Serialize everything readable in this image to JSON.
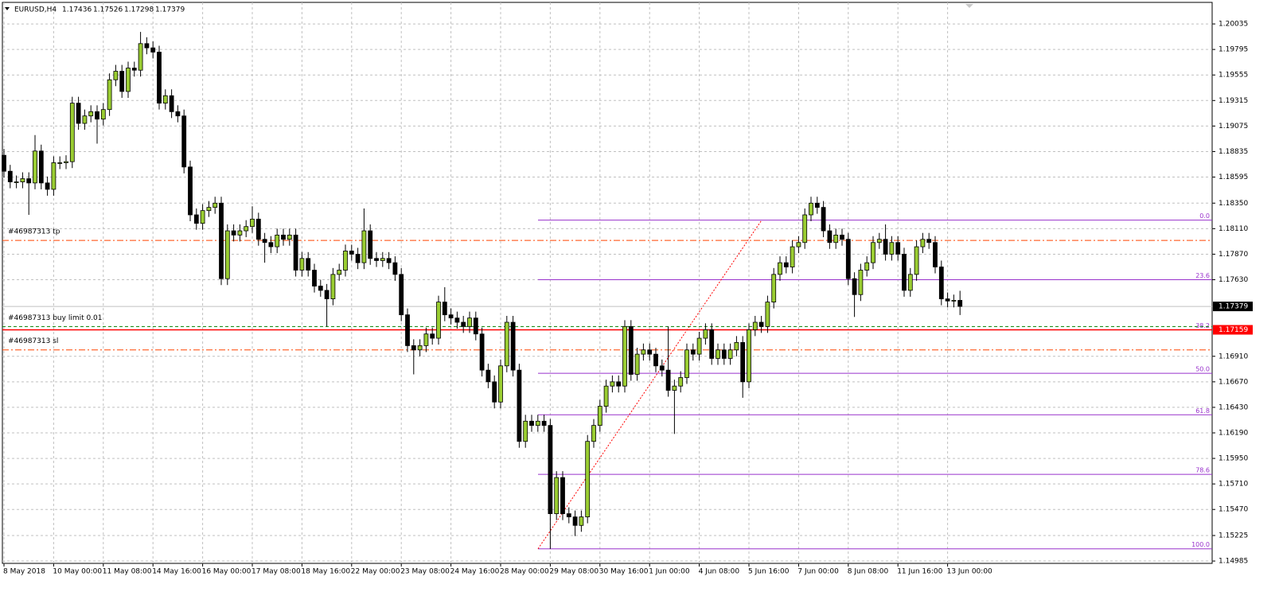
{
  "chart_data": {
    "type": "candlestick",
    "title": "EURUSD,H4",
    "categories": [
      "8 May 2018",
      null,
      null,
      null,
      null,
      null,
      null,
      null,
      "10 May 00:00",
      null,
      null,
      null,
      null,
      null,
      null,
      null,
      "11 May 08:00",
      null,
      null,
      null,
      null,
      null,
      null,
      null,
      "14 May 16:00",
      null,
      null,
      null,
      null,
      null,
      null,
      null,
      "16 May 00:00",
      null,
      null,
      null,
      null,
      null,
      null,
      null,
      "17 May 08:00",
      null,
      null,
      null,
      null,
      null,
      null,
      null,
      "18 May 16:00",
      null,
      null,
      null,
      null,
      null,
      null,
      null,
      "22 May 00:00",
      null,
      null,
      null,
      null,
      null,
      null,
      null,
      "23 May 08:00",
      null,
      null,
      null,
      null,
      null,
      null,
      null,
      "24 May 16:00",
      null,
      null,
      null,
      null,
      null,
      null,
      null,
      "28 May 00:00",
      null,
      null,
      null,
      null,
      null,
      null,
      null,
      "29 May 08:00",
      null,
      null,
      null,
      null,
      null,
      null,
      null,
      "30 May 16:00",
      null,
      null,
      null,
      null,
      null,
      null,
      null,
      "1 Jun 00:00",
      null,
      null,
      null,
      null,
      null,
      null,
      null,
      "4 Jun 08:00",
      null,
      null,
      null,
      null,
      null,
      null,
      null,
      "5 Jun 16:00",
      null,
      null,
      null,
      null,
      null,
      null,
      null,
      "7 Jun 00:00",
      null,
      null,
      null,
      null,
      null,
      null,
      null,
      "8 Jun 08:00",
      null,
      null,
      null,
      null,
      null,
      null,
      null,
      "11 Jun 16:00",
      null,
      null,
      null,
      null,
      null,
      null,
      null,
      "13 Jun 00:00",
      null,
      null
    ],
    "open": [
      1.188,
      1.1865,
      1.1855,
      1.1855,
      1.1858,
      1.1854,
      1.1884,
      1.1854,
      1.1848,
      1.1873,
      1.1873,
      1.1874,
      1.1929,
      1.191,
      1.1917,
      1.1921,
      1.1914,
      1.1923,
      1.1951,
      1.1959,
      1.194,
      1.1962,
      1.196,
      1.1985,
      1.1981,
      1.1977,
      1.1929,
      1.1936,
      1.1921,
      1.1917,
      1.1869,
      1.1824,
      1.1816,
      1.1828,
      1.1831,
      1.1835,
      1.1764,
      1.1809,
      1.1805,
      1.1809,
      1.1813,
      1.182,
      1.1801,
      1.1798,
      1.1794,
      1.1805,
      1.1801,
      1.1805,
      1.1772,
      1.1783,
      1.1772,
      1.1757,
      1.1753,
      1.1745,
      1.1768,
      1.1772,
      1.179,
      1.1787,
      1.1779,
      1.1809,
      1.1783,
      1.1781,
      1.1783,
      1.1779,
      1.1768,
      1.173,
      1.1701,
      1.1697,
      1.1701,
      1.1712,
      1.1708,
      1.1742,
      1.173,
      1.1727,
      1.1723,
      1.1719,
      1.1727,
      1.1712,
      1.1678,
      1.1667,
      1.1648,
      1.1682,
      1.1723,
      1.1678,
      1.1611,
      1.163,
      1.1626,
      1.163,
      1.1626,
      1.1543,
      1.1577,
      1.1543,
      1.154,
      1.1532,
      1.154,
      1.1611,
      1.1626,
      1.1644,
      1.1663,
      1.1667,
      1.1663,
      1.1719,
      1.1674,
      1.1693,
      1.1697,
      1.1693,
      1.1682,
      1.1678,
      1.1659,
      1.1663,
      1.1671,
      1.1697,
      1.1693,
      1.1708,
      1.1716,
      1.1689,
      1.1697,
      1.1689,
      1.1697,
      1.1704,
      1.1667,
      1.1716,
      1.1723,
      1.1719,
      1.1742,
      1.1768,
      1.1779,
      1.1775,
      1.1794,
      1.1798,
      1.1824,
      1.1835,
      1.1831,
      1.1809,
      1.1798,
      1.1805,
      1.1801,
      1.1764,
      1.1749,
      1.1772,
      1.1779,
      1.1798,
      1.1801,
      1.1787,
      1.1798,
      1.1787,
      1.1753,
      1.1768,
      1.1794,
      1.1801,
      1.1798,
      1.1775,
      1.1745,
      1.1743,
      1.17436
    ],
    "high": [
      1.1886,
      1.1871,
      1.1861,
      1.1864,
      1.1864,
      1.1899,
      1.189,
      1.186,
      1.1879,
      1.1879,
      1.188,
      1.1935,
      1.1935,
      1.1923,
      1.1927,
      1.1927,
      1.1929,
      1.1957,
      1.1965,
      1.1965,
      1.1968,
      1.1968,
      1.1996,
      1.1991,
      1.1987,
      1.1983,
      1.1942,
      1.1942,
      1.1927,
      1.1923,
      1.1875,
      1.183,
      1.1834,
      1.1837,
      1.1841,
      1.1841,
      1.1815,
      1.1815,
      1.1815,
      1.1819,
      1.1832,
      1.1826,
      1.1807,
      1.1804,
      1.1811,
      1.1811,
      1.1811,
      1.1811,
      1.1789,
      1.1789,
      1.1778,
      1.1763,
      1.1759,
      1.1774,
      1.1778,
      1.1796,
      1.1796,
      1.1793,
      1.183,
      1.1815,
      1.1789,
      1.1789,
      1.1789,
      1.1785,
      1.1774,
      1.1736,
      1.1707,
      1.1707,
      1.1718,
      1.1718,
      1.1748,
      1.1756,
      1.1736,
      1.1733,
      1.1729,
      1.1733,
      1.1733,
      1.1718,
      1.1684,
      1.1673,
      1.1688,
      1.1729,
      1.1729,
      1.1684,
      1.1636,
      1.1636,
      1.1636,
      1.1636,
      1.1632,
      1.1583,
      1.1583,
      1.1549,
      1.1546,
      1.1546,
      1.1617,
      1.1632,
      1.165,
      1.1669,
      1.1673,
      1.1673,
      1.1725,
      1.1725,
      1.1699,
      1.1703,
      1.1703,
      1.1699,
      1.1688,
      1.1719,
      1.1669,
      1.1677,
      1.1703,
      1.1703,
      1.1714,
      1.1722,
      1.1722,
      1.1703,
      1.1703,
      1.1703,
      1.171,
      1.171,
      1.1722,
      1.1729,
      1.1729,
      1.1748,
      1.1774,
      1.1785,
      1.1785,
      1.18,
      1.1804,
      1.183,
      1.1841,
      1.1841,
      1.1837,
      1.1815,
      1.1811,
      1.1811,
      1.1807,
      1.177,
      1.1778,
      1.1785,
      1.1804,
      1.1807,
      1.1815,
      1.1804,
      1.1804,
      1.1793,
      1.1774,
      1.18,
      1.1807,
      1.1807,
      1.1804,
      1.1781,
      1.1751,
      1.1749,
      1.17526
    ],
    "low": [
      1.1859,
      1.1849,
      1.1849,
      1.1849,
      1.1824,
      1.1848,
      1.1848,
      1.1842,
      1.1842,
      1.1867,
      1.1867,
      1.1868,
      1.1904,
      1.1904,
      1.1911,
      1.1891,
      1.1908,
      1.1917,
      1.1945,
      1.1934,
      1.1934,
      1.1954,
      1.1954,
      1.1975,
      1.1971,
      1.1923,
      1.1923,
      1.1915,
      1.1911,
      1.1863,
      1.1818,
      1.181,
      1.181,
      1.1822,
      1.1825,
      1.1758,
      1.1758,
      1.1799,
      1.1799,
      1.1803,
      1.1807,
      1.1795,
      1.1779,
      1.1788,
      1.1788,
      1.1795,
      1.1795,
      1.1766,
      1.1766,
      1.1766,
      1.1751,
      1.1747,
      1.1719,
      1.1739,
      1.1762,
      1.1766,
      1.1781,
      1.1773,
      1.1773,
      1.1777,
      1.1775,
      1.1775,
      1.1773,
      1.1762,
      1.1724,
      1.1695,
      1.1674,
      1.1691,
      1.1695,
      1.1702,
      1.1702,
      1.1724,
      1.1721,
      1.1717,
      1.1713,
      1.1713,
      1.1706,
      1.1672,
      1.1661,
      1.1642,
      1.1642,
      1.1676,
      1.1672,
      1.1605,
      1.1605,
      1.162,
      1.162,
      1.162,
      1.151,
      1.1537,
      1.1537,
      1.1534,
      1.1522,
      1.1526,
      1.1534,
      1.1605,
      1.162,
      1.1638,
      1.1657,
      1.1657,
      1.1657,
      1.1668,
      1.1668,
      1.1687,
      1.1687,
      1.1676,
      1.1672,
      1.1653,
      1.1618,
      1.1657,
      1.1665,
      1.1687,
      1.1687,
      1.1702,
      1.1683,
      1.1683,
      1.1683,
      1.1683,
      1.1691,
      1.1652,
      1.1661,
      1.171,
      1.1713,
      1.1713,
      1.1736,
      1.1762,
      1.1769,
      1.1769,
      1.1788,
      1.1792,
      1.1818,
      1.1825,
      1.1803,
      1.1792,
      1.1792,
      1.1795,
      1.1758,
      1.1728,
      1.1743,
      1.1766,
      1.1773,
      1.1792,
      1.1781,
      1.1781,
      1.1781,
      1.1747,
      1.1747,
      1.1762,
      1.1788,
      1.1792,
      1.1769,
      1.1739,
      1.1737,
      1.1737,
      1.17298
    ],
    "close": [
      1.1865,
      1.1855,
      1.1855,
      1.1858,
      1.1854,
      1.1884,
      1.1854,
      1.1848,
      1.1873,
      1.1873,
      1.1874,
      1.1929,
      1.191,
      1.1917,
      1.1921,
      1.1914,
      1.1923,
      1.1951,
      1.1959,
      1.194,
      1.1962,
      1.196,
      1.1985,
      1.1981,
      1.1977,
      1.1929,
      1.1936,
      1.1921,
      1.1917,
      1.1869,
      1.1824,
      1.1816,
      1.1828,
      1.1831,
      1.1835,
      1.1764,
      1.1809,
      1.1805,
      1.1809,
      1.1813,
      1.182,
      1.1801,
      1.1798,
      1.1794,
      1.1805,
      1.1801,
      1.1805,
      1.1772,
      1.1783,
      1.1772,
      1.1757,
      1.1753,
      1.1745,
      1.1768,
      1.1772,
      1.179,
      1.1787,
      1.1779,
      1.1809,
      1.1783,
      1.1781,
      1.1783,
      1.1779,
      1.1768,
      1.173,
      1.1701,
      1.1697,
      1.1701,
      1.1712,
      1.1708,
      1.1742,
      1.173,
      1.1727,
      1.1723,
      1.1719,
      1.1727,
      1.1712,
      1.1678,
      1.1667,
      1.1648,
      1.1682,
      1.1723,
      1.1678,
      1.1611,
      1.163,
      1.1626,
      1.163,
      1.1626,
      1.1543,
      1.1577,
      1.1543,
      1.154,
      1.1532,
      1.154,
      1.1611,
      1.1626,
      1.1644,
      1.1663,
      1.1667,
      1.1663,
      1.1719,
      1.1674,
      1.1693,
      1.1697,
      1.1693,
      1.1682,
      1.1678,
      1.1659,
      1.1663,
      1.1671,
      1.1697,
      1.1693,
      1.1708,
      1.1716,
      1.1689,
      1.1697,
      1.1689,
      1.1697,
      1.1704,
      1.1667,
      1.1716,
      1.1723,
      1.1719,
      1.1742,
      1.1768,
      1.1779,
      1.1775,
      1.1794,
      1.1798,
      1.1824,
      1.1835,
      1.1831,
      1.1809,
      1.1798,
      1.1805,
      1.1801,
      1.1764,
      1.1749,
      1.1772,
      1.1779,
      1.1798,
      1.1801,
      1.1787,
      1.1798,
      1.1787,
      1.1753,
      1.1768,
      1.1794,
      1.1801,
      1.1798,
      1.1775,
      1.1745,
      1.1743,
      1.17436,
      1.17379
    ],
    "colors": {
      "bull": "#9acd32",
      "bear": "#000000",
      "fib": "#9932cc",
      "price_line": "#ff0000",
      "current": "#c0c0c0"
    },
    "ylim": [
      1.14963,
      1.2026
    ],
    "yticks": [
      1.20035,
      1.19795,
      1.19555,
      1.19315,
      1.19075,
      1.18835,
      1.18595,
      {
        "value": 1.1835,
        "label": "1.18350"
      },
      {
        "value": 1.1811,
        "label": "1.18110"
      },
      {
        "value": 1.1787,
        "label": "1.17870"
      },
      {
        "value": 1.1763,
        "label": "1.17630"
      },
      {
        "value": 1.1691,
        "label": "1.16910"
      },
      {
        "value": 1.1667,
        "label": "1.16670"
      },
      {
        "value": 1.1643,
        "label": "1.16430"
      },
      {
        "value": 1.1619,
        "label": "1.16190"
      },
      {
        "value": 1.1595,
        "label": "1.15950"
      },
      {
        "value": 1.1571,
        "label": "1.15710"
      },
      {
        "value": 1.1547,
        "label": "1.15470"
      },
      1.15225,
      1.14985
    ],
    "grid": true,
    "price_line": 1.17159,
    "orders": [
      {
        "label": "#46987313 tp",
        "value": 1.18,
        "color": "#ff4500",
        "dash": "8 3 2 3"
      },
      {
        "label": "#46987313 buy limit 0.01",
        "value": 1.1719,
        "color": "#008000",
        "dash": "4 3"
      },
      {
        "label": "#46987313 sl",
        "value": 1.1697,
        "color": "#ff4500",
        "dash": "8 3 2 3"
      }
    ],
    "fib_levels": [
      {
        "label": "0.0",
        "value": 1.1819
      },
      {
        "label": "23.6",
        "value": 1.1763
      },
      {
        "label": "38.2",
        "value": 1.1716
      },
      {
        "label": "50.0",
        "value": 1.1675
      },
      {
        "label": "61.8",
        "value": 1.1636
      },
      {
        "label": "78.6",
        "value": 1.158
      },
      {
        "label": "100.0",
        "value": 1.151
      }
    ]
  }
}
